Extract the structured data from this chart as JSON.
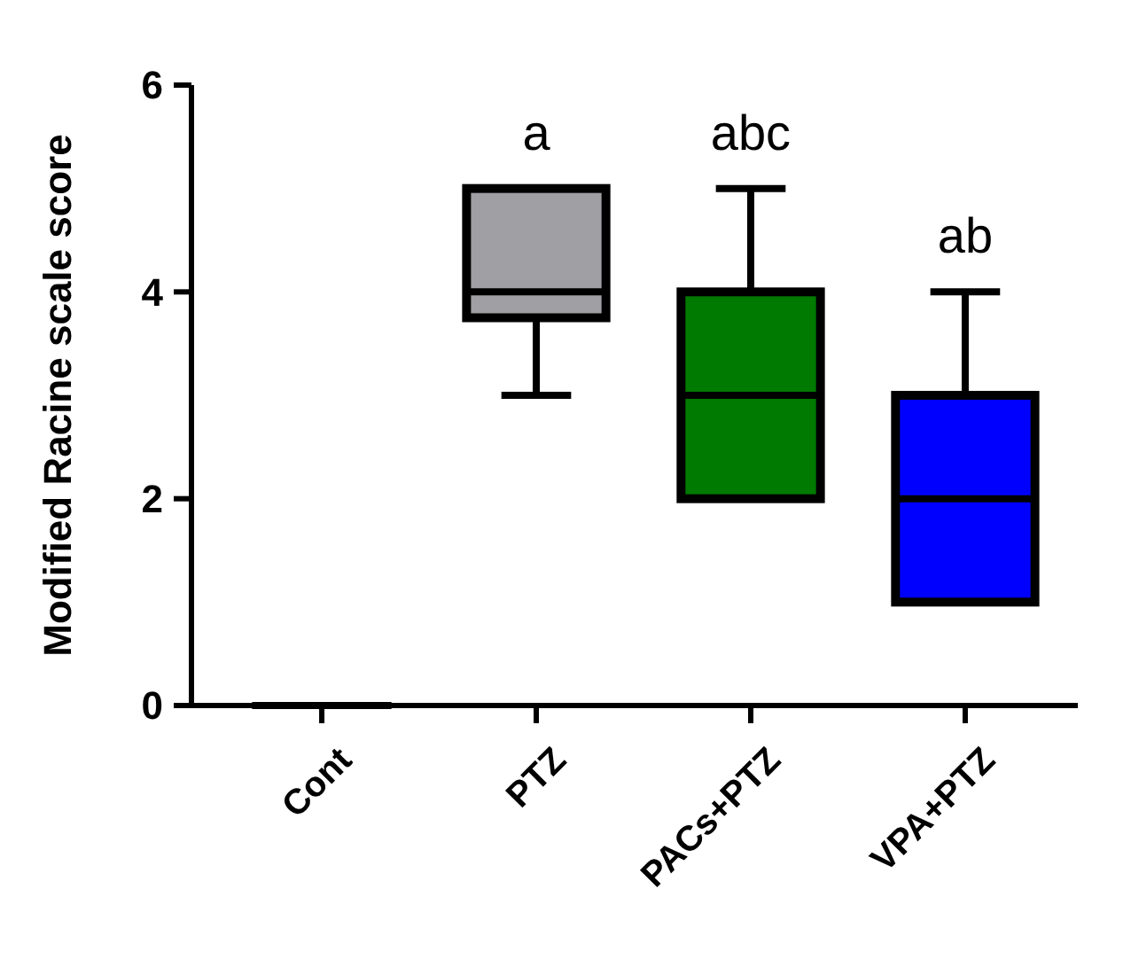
{
  "chart_data": {
    "type": "box",
    "ylabel": "Modified Racine scale score",
    "categories": [
      "Cont",
      "PTZ",
      "PACs+PTZ",
      "VPA+PTZ"
    ],
    "colors": [
      "#000000",
      "#a0a0a4",
      "#007a00",
      "#0000ff"
    ],
    "boxes": [
      {
        "low": 0,
        "q1": 0,
        "median": 0,
        "q3": 0,
        "high": 0
      },
      {
        "low": 3,
        "q1": 3.75,
        "median": 4,
        "q3": 5,
        "high": 5
      },
      {
        "low": 2,
        "q1": 2,
        "median": 3,
        "q3": 4,
        "high": 5
      },
      {
        "low": 1,
        "q1": 1,
        "median": 2,
        "q3": 3,
        "high": 4
      }
    ],
    "ylim": [
      0,
      6
    ],
    "yticks": [
      0,
      2,
      4,
      6
    ],
    "grid": false,
    "annotations": [
      "a",
      "abc",
      "ab"
    ]
  }
}
